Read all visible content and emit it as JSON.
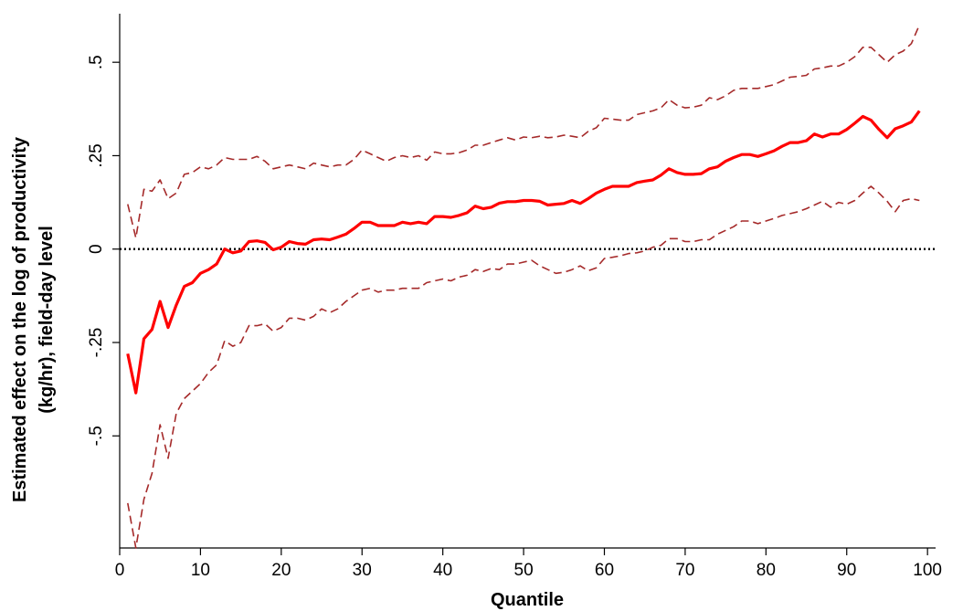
{
  "chart_data": {
    "type": "line",
    "title": "",
    "xlabel": "Quantile",
    "ylabel_line1": "Estimated effect on the log of  productivity",
    "ylabel_line2": "(kg/hr), field-day level",
    "xlim": [
      0,
      101
    ],
    "ylim": [
      -0.8,
      0.63
    ],
    "x_ticks": [
      0,
      10,
      20,
      30,
      40,
      50,
      60,
      70,
      80,
      90,
      100
    ],
    "x_tick_labels": [
      "0",
      "10",
      "20",
      "30",
      "40",
      "50",
      "60",
      "70",
      "80",
      "90",
      "100"
    ],
    "y_ticks": [
      0.5,
      0.25,
      0,
      -0.25,
      -0.5
    ],
    "y_tick_labels": [
      ".5",
      ".25",
      "0",
      "-.25",
      "-.5"
    ],
    "grid": false,
    "reference_line": {
      "y": 0,
      "style": "dotted",
      "color": "#000000"
    },
    "x": [
      1,
      2,
      3,
      4,
      5,
      6,
      7,
      8,
      9,
      10,
      11,
      12,
      13,
      14,
      15,
      16,
      17,
      18,
      19,
      20,
      21,
      22,
      23,
      24,
      25,
      26,
      27,
      28,
      29,
      30,
      31,
      32,
      33,
      34,
      35,
      36,
      37,
      38,
      39,
      40,
      41,
      42,
      43,
      44,
      45,
      46,
      47,
      48,
      49,
      50,
      51,
      52,
      53,
      54,
      55,
      56,
      57,
      58,
      59,
      60,
      61,
      62,
      63,
      64,
      65,
      66,
      67,
      68,
      69,
      70,
      71,
      72,
      73,
      74,
      75,
      76,
      77,
      78,
      79,
      80,
      81,
      82,
      83,
      84,
      85,
      86,
      87,
      88,
      89,
      90,
      91,
      92,
      93,
      94,
      95,
      96,
      97,
      98,
      99
    ],
    "series": [
      {
        "role": "estimate",
        "color": "#ff0000",
        "style": "solid",
        "values": [
          -0.28,
          -0.385,
          -0.24,
          -0.215,
          -0.14,
          -0.21,
          -0.15,
          -0.1,
          -0.09,
          -0.065,
          -0.055,
          -0.04,
          0.0,
          -0.01,
          -0.005,
          0.02,
          0.022,
          0.018,
          -0.002,
          0.005,
          0.02,
          0.015,
          0.013,
          0.025,
          0.027,
          0.025,
          0.032,
          0.04,
          0.055,
          0.072,
          0.072,
          0.063,
          0.063,
          0.063,
          0.072,
          0.068,
          0.072,
          0.068,
          0.087,
          0.087,
          0.085,
          0.09,
          0.097,
          0.115,
          0.108,
          0.112,
          0.123,
          0.127,
          0.127,
          0.13,
          0.13,
          0.128,
          0.118,
          0.12,
          0.122,
          0.13,
          0.122,
          0.135,
          0.15,
          0.16,
          0.168,
          0.168,
          0.168,
          0.178,
          0.182,
          0.185,
          0.198,
          0.215,
          0.205,
          0.2,
          0.2,
          0.202,
          0.215,
          0.22,
          0.235,
          0.245,
          0.253,
          0.253,
          0.248,
          0.255,
          0.263,
          0.275,
          0.285,
          0.285,
          0.29,
          0.308,
          0.3,
          0.308,
          0.308,
          0.32,
          0.337,
          0.355,
          0.345,
          0.32,
          0.298,
          0.322,
          0.33,
          0.34,
          0.37
        ]
      },
      {
        "role": "upper-bound",
        "color": "#a52a2a",
        "style": "dashed",
        "values": [
          0.12,
          0.03,
          0.16,
          0.155,
          0.185,
          0.135,
          0.15,
          0.2,
          0.205,
          0.22,
          0.215,
          0.225,
          0.245,
          0.24,
          0.24,
          0.24,
          0.248,
          0.235,
          0.215,
          0.22,
          0.225,
          0.22,
          0.215,
          0.23,
          0.225,
          0.22,
          0.225,
          0.225,
          0.24,
          0.265,
          0.255,
          0.245,
          0.235,
          0.245,
          0.25,
          0.245,
          0.25,
          0.238,
          0.26,
          0.255,
          0.255,
          0.258,
          0.265,
          0.278,
          0.278,
          0.285,
          0.292,
          0.298,
          0.292,
          0.3,
          0.298,
          0.302,
          0.298,
          0.3,
          0.305,
          0.302,
          0.298,
          0.315,
          0.325,
          0.35,
          0.348,
          0.345,
          0.345,
          0.36,
          0.365,
          0.37,
          0.378,
          0.4,
          0.385,
          0.378,
          0.38,
          0.385,
          0.405,
          0.4,
          0.41,
          0.425,
          0.43,
          0.43,
          0.43,
          0.435,
          0.44,
          0.45,
          0.46,
          0.462,
          0.465,
          0.482,
          0.485,
          0.49,
          0.49,
          0.5,
          0.515,
          0.54,
          0.54,
          0.52,
          0.5,
          0.52,
          0.53,
          0.55,
          0.6
        ]
      },
      {
        "role": "lower-bound",
        "color": "#a52a2a",
        "style": "dashed",
        "values": [
          -0.68,
          -0.8,
          -0.67,
          -0.6,
          -0.47,
          -0.56,
          -0.44,
          -0.4,
          -0.38,
          -0.36,
          -0.33,
          -0.31,
          -0.245,
          -0.26,
          -0.25,
          -0.205,
          -0.205,
          -0.2,
          -0.22,
          -0.21,
          -0.185,
          -0.185,
          -0.19,
          -0.18,
          -0.16,
          -0.17,
          -0.16,
          -0.14,
          -0.125,
          -0.11,
          -0.105,
          -0.115,
          -0.11,
          -0.11,
          -0.105,
          -0.105,
          -0.105,
          -0.09,
          -0.085,
          -0.08,
          -0.085,
          -0.075,
          -0.07,
          -0.055,
          -0.06,
          -0.052,
          -0.055,
          -0.04,
          -0.04,
          -0.035,
          -0.03,
          -0.045,
          -0.055,
          -0.065,
          -0.062,
          -0.055,
          -0.045,
          -0.058,
          -0.05,
          -0.025,
          -0.022,
          -0.018,
          -0.012,
          -0.01,
          -0.005,
          0.005,
          0.01,
          0.028,
          0.028,
          0.02,
          0.02,
          0.025,
          0.025,
          0.04,
          0.05,
          0.06,
          0.075,
          0.075,
          0.068,
          0.075,
          0.082,
          0.09,
          0.095,
          0.1,
          0.108,
          0.118,
          0.128,
          0.112,
          0.125,
          0.12,
          0.13,
          0.15,
          0.168,
          0.15,
          0.128,
          0.1,
          0.13,
          0.135,
          0.13
        ]
      }
    ]
  }
}
